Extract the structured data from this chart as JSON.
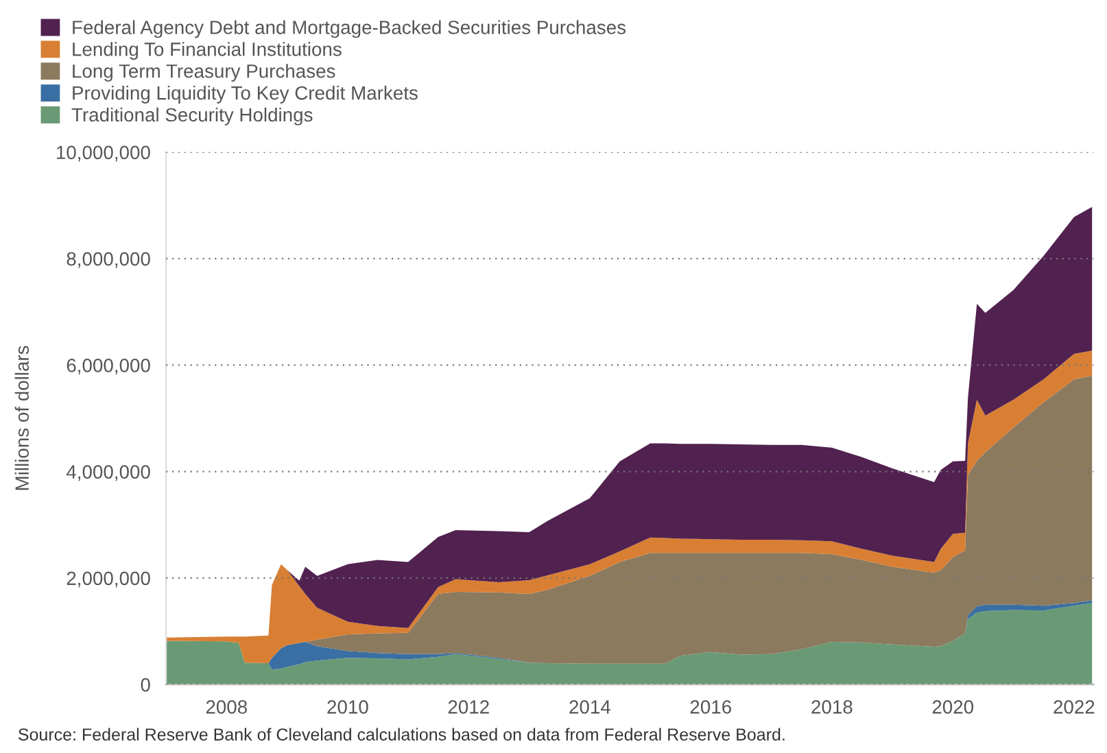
{
  "chart_data": {
    "type": "area",
    "stacked": true,
    "ylabel": "Millions of dollars",
    "x": [
      "2007-01-01",
      "2008-01-01",
      "2008-03-15",
      "2008-04-20",
      "2008-09-10",
      "2008-10-01",
      "2008-11-25",
      "2009-01-01",
      "2009-03-15",
      "2009-04-20",
      "2009-07-01",
      "2010-01-01",
      "2010-07-01",
      "2011-01-01",
      "2011-07-01",
      "2011-10-15",
      "2012-07-01",
      "2013-01-01",
      "2013-04-20",
      "2014-01-01",
      "2014-07-01",
      "2015-01-01",
      "2015-04-01",
      "2015-07-01",
      "2016-01-01",
      "2016-07-01",
      "2017-01-01",
      "2017-07-01",
      "2018-01-01",
      "2018-07-01",
      "2019-01-01",
      "2019-09-10",
      "2019-10-20",
      "2020-01-01",
      "2020-03-15",
      "2020-04-01",
      "2020-05-25",
      "2020-07-15",
      "2021-01-01",
      "2021-07-01",
      "2022-01-01",
      "2022-04-20"
    ],
    "series": [
      {
        "name": "Traditional Security Holdings",
        "color": "#6a9a75",
        "values": [
          820000,
          810000,
          780000,
          410000,
          400000,
          280000,
          300000,
          330000,
          380000,
          420000,
          450000,
          500000,
          490000,
          470000,
          520000,
          570000,
          480000,
          410000,
          400000,
          390000,
          390000,
          390000,
          390000,
          540000,
          610000,
          560000,
          570000,
          660000,
          800000,
          790000,
          750000,
          710000,
          720000,
          820000,
          960000,
          1230000,
          1350000,
          1380000,
          1400000,
          1390000,
          1480000,
          1530000
        ]
      },
      {
        "name": "Providing Liquidity To Key Credit Markets",
        "color": "#3a6fa3",
        "values": [
          0,
          0,
          0,
          0,
          0,
          220000,
          380000,
          410000,
          400000,
          380000,
          270000,
          130000,
          100000,
          100000,
          50000,
          20000,
          20000,
          0,
          0,
          0,
          0,
          0,
          0,
          0,
          0,
          0,
          0,
          0,
          0,
          0,
          0,
          0,
          0,
          0,
          0,
          70000,
          120000,
          120000,
          100000,
          90000,
          50000,
          50000
        ]
      },
      {
        "name": "Long Term Treasury Purchases",
        "color": "#8c7a5f",
        "values": [
          0,
          0,
          0,
          0,
          0,
          0,
          0,
          0,
          0,
          0,
          120000,
          310000,
          370000,
          400000,
          1130000,
          1150000,
          1230000,
          1290000,
          1380000,
          1650000,
          1910000,
          2080000,
          2080000,
          1930000,
          1860000,
          1910000,
          1900000,
          1810000,
          1650000,
          1550000,
          1460000,
          1390000,
          1430000,
          1570000,
          1560000,
          2630000,
          2730000,
          2860000,
          3330000,
          3820000,
          4200000,
          4220000
        ]
      },
      {
        "name": "Lending To Financial Institutions",
        "color": "#d97f33",
        "values": [
          60000,
          90000,
          120000,
          490000,
          520000,
          1370000,
          1580000,
          1410000,
          1070000,
          900000,
          600000,
          240000,
          140000,
          90000,
          130000,
          240000,
          190000,
          260000,
          270000,
          220000,
          200000,
          290000,
          280000,
          270000,
          260000,
          250000,
          250000,
          240000,
          240000,
          210000,
          210000,
          200000,
          400000,
          440000,
          330000,
          600000,
          1150000,
          690000,
          520000,
          430000,
          480000,
          470000
        ]
      },
      {
        "name": "Federal Agency Debt and Mortgage-Backed Securities Purchases",
        "color": "#512150",
        "values": [
          0,
          0,
          0,
          0,
          0,
          0,
          0,
          0,
          100000,
          510000,
          600000,
          1080000,
          1240000,
          1240000,
          940000,
          920000,
          960000,
          900000,
          1020000,
          1240000,
          1690000,
          1770000,
          1780000,
          1780000,
          1790000,
          1790000,
          1780000,
          1790000,
          1760000,
          1720000,
          1640000,
          1500000,
          1480000,
          1360000,
          1350000,
          860000,
          1800000,
          1930000,
          2060000,
          2320000,
          2570000,
          2700000
        ]
      }
    ],
    "xlim": [
      "2007-01-01",
      "2022-04-30"
    ],
    "xticks": [
      "2008",
      "2010",
      "2012",
      "2014",
      "2016",
      "2018",
      "2020",
      "2022"
    ],
    "ylim": [
      0,
      10000000
    ],
    "yticks": [
      0,
      {
        "value": 2000000,
        "label": "2,000,000"
      },
      {
        "value": 4000000,
        "label": "4,000,000"
      },
      {
        "value": 6000000,
        "label": "6,000,000"
      },
      {
        "value": 8000000,
        "label": "8,000,000"
      },
      {
        "value": 10000000,
        "label": "10,000,000"
      }
    ],
    "grid": "y",
    "legend": "top left",
    "annotations": [
      "Source: Federal Reserve Bank of Cleveland calculations based on data from Federal Reserve Board."
    ]
  }
}
